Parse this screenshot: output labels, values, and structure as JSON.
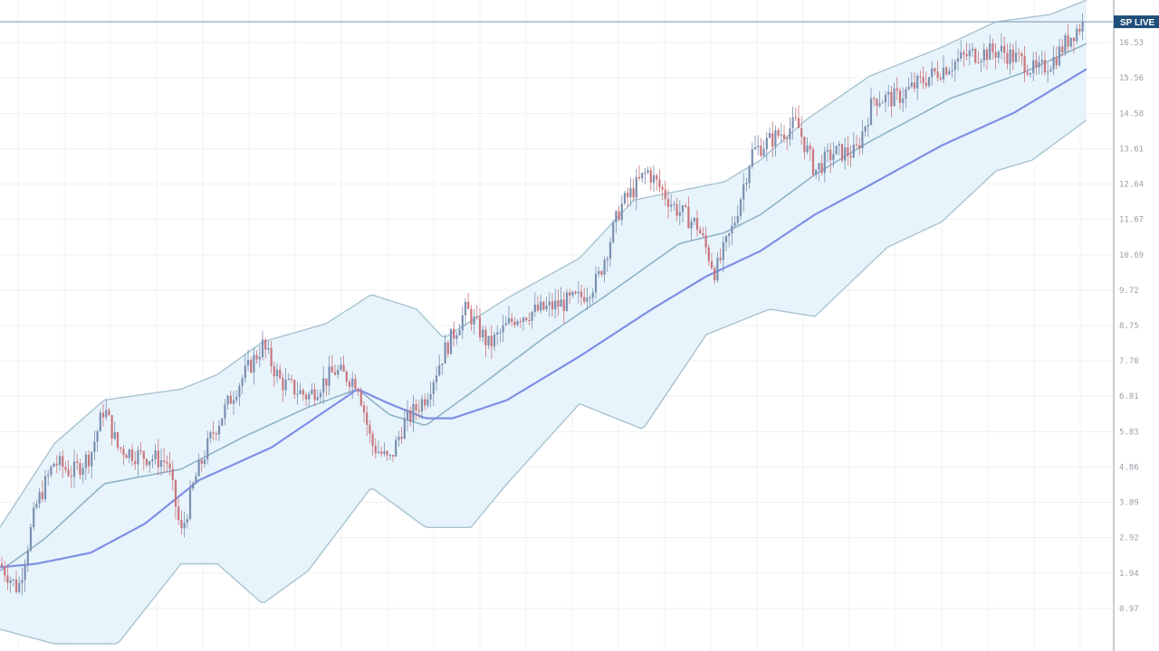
{
  "chart_data": {
    "type": "candlestick",
    "title": "",
    "xlabel": "",
    "ylabel": "",
    "ylim": [
      0,
      17.5
    ],
    "y_ticks_count": 17,
    "current_price_label": "SP LIVE",
    "current_price_value": 17.1,
    "grid": true,
    "overlays": [
      "bollinger-bands",
      "moving-average-fast",
      "moving-average-slow"
    ],
    "colors": {
      "up": "#7a8fb0",
      "down": "#c9757c",
      "band_fill": "#e6f3fb",
      "band_line": "#a9c3d1",
      "ma_fast": "#8fb3c9",
      "ma_slow": "#7f8fe6",
      "price_line": "#8fa9bf",
      "price_tag": "#1f4e7a",
      "grid": "#edf1f4",
      "axis": "#c7cdd3"
    },
    "price_waypoints": [
      [
        0,
        2.2
      ],
      [
        20,
        1.5
      ],
      [
        40,
        3.8
      ],
      [
        60,
        5.0
      ],
      [
        80,
        4.7
      ],
      [
        100,
        5.2
      ],
      [
        115,
        6.5
      ],
      [
        130,
        5.4
      ],
      [
        150,
        5.2
      ],
      [
        170,
        5.1
      ],
      [
        185,
        5.0
      ],
      [
        200,
        3.0
      ],
      [
        215,
        4.5
      ],
      [
        235,
        5.8
      ],
      [
        260,
        7.0
      ],
      [
        290,
        8.2
      ],
      [
        310,
        7.2
      ],
      [
        340,
        6.8
      ],
      [
        370,
        7.5
      ],
      [
        395,
        7.2
      ],
      [
        410,
        5.5
      ],
      [
        430,
        5.0
      ],
      [
        445,
        6.0
      ],
      [
        470,
        6.8
      ],
      [
        490,
        8.0
      ],
      [
        515,
        9.2
      ],
      [
        540,
        8.2
      ],
      [
        570,
        9.0
      ],
      [
        600,
        9.2
      ],
      [
        640,
        9.5
      ],
      [
        660,
        10.0
      ],
      [
        685,
        12.0
      ],
      [
        715,
        13.0
      ],
      [
        745,
        12.0
      ],
      [
        770,
        11.5
      ],
      [
        790,
        10.2
      ],
      [
        810,
        11.5
      ],
      [
        830,
        13.5
      ],
      [
        860,
        14.0
      ],
      [
        880,
        14.3
      ],
      [
        900,
        13.0
      ],
      [
        920,
        13.5
      ],
      [
        945,
        13.5
      ],
      [
        965,
        15.0
      ],
      [
        990,
        15.0
      ],
      [
        1020,
        15.5
      ],
      [
        1040,
        15.8
      ],
      [
        1070,
        16.2
      ],
      [
        1105,
        16.3
      ],
      [
        1130,
        16.0
      ],
      [
        1145,
        15.7
      ],
      [
        1165,
        16.1
      ],
      [
        1185,
        16.8
      ],
      [
        1198,
        17.1
      ]
    ],
    "bollinger_upper": [
      [
        0,
        3.2
      ],
      [
        60,
        5.5
      ],
      [
        115,
        6.7
      ],
      [
        200,
        7.0
      ],
      [
        240,
        7.4
      ],
      [
        290,
        8.3
      ],
      [
        360,
        8.8
      ],
      [
        410,
        9.6
      ],
      [
        460,
        9.2
      ],
      [
        490,
        8.4
      ],
      [
        560,
        9.5
      ],
      [
        640,
        10.6
      ],
      [
        700,
        12.2
      ],
      [
        800,
        12.7
      ],
      [
        840,
        13.3
      ],
      [
        890,
        14.4
      ],
      [
        960,
        15.6
      ],
      [
        1040,
        16.4
      ],
      [
        1100,
        17.1
      ],
      [
        1160,
        17.3
      ],
      [
        1200,
        17.7
      ]
    ],
    "bollinger_lower": [
      [
        0,
        0.4
      ],
      [
        60,
        0.0
      ],
      [
        130,
        0.0
      ],
      [
        200,
        2.2
      ],
      [
        240,
        2.2
      ],
      [
        290,
        1.1
      ],
      [
        340,
        2.0
      ],
      [
        410,
        4.3
      ],
      [
        470,
        3.2
      ],
      [
        520,
        3.2
      ],
      [
        560,
        4.4
      ],
      [
        640,
        6.6
      ],
      [
        710,
        5.9
      ],
      [
        780,
        8.5
      ],
      [
        850,
        9.2
      ],
      [
        900,
        9.0
      ],
      [
        980,
        10.9
      ],
      [
        1040,
        11.6
      ],
      [
        1100,
        13.0
      ],
      [
        1140,
        13.3
      ],
      [
        1200,
        14.4
      ]
    ],
    "ma_fast": [
      [
        0,
        2.0
      ],
      [
        50,
        2.9
      ],
      [
        115,
        4.4
      ],
      [
        200,
        4.8
      ],
      [
        270,
        5.7
      ],
      [
        340,
        6.5
      ],
      [
        395,
        7.0
      ],
      [
        430,
        6.3
      ],
      [
        470,
        6.0
      ],
      [
        520,
        6.9
      ],
      [
        600,
        8.4
      ],
      [
        665,
        9.5
      ],
      [
        750,
        11.0
      ],
      [
        800,
        11.3
      ],
      [
        840,
        11.8
      ],
      [
        900,
        12.9
      ],
      [
        960,
        13.8
      ],
      [
        1050,
        15.0
      ],
      [
        1130,
        15.7
      ],
      [
        1200,
        16.5
      ]
    ],
    "ma_slow": [
      [
        0,
        2.1
      ],
      [
        40,
        2.2
      ],
      [
        100,
        2.5
      ],
      [
        160,
        3.3
      ],
      [
        220,
        4.5
      ],
      [
        300,
        5.4
      ],
      [
        395,
        7.0
      ],
      [
        430,
        6.6
      ],
      [
        470,
        6.2
      ],
      [
        500,
        6.2
      ],
      [
        560,
        6.7
      ],
      [
        640,
        7.9
      ],
      [
        720,
        9.2
      ],
      [
        780,
        10.1
      ],
      [
        840,
        10.8
      ],
      [
        900,
        11.8
      ],
      [
        960,
        12.6
      ],
      [
        1040,
        13.7
      ],
      [
        1120,
        14.6
      ],
      [
        1200,
        15.8
      ]
    ]
  }
}
